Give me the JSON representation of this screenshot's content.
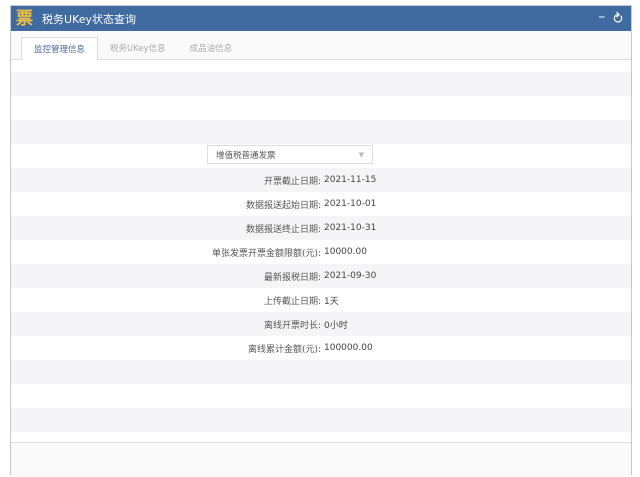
{
  "window": {
    "title": "税务UKey状态查询",
    "logo": "票",
    "minimize": "–",
    "back": "↺"
  },
  "tabs": [
    {
      "label": "监控管理信息",
      "active": true
    },
    {
      "label": "税务UKey信息"
    },
    {
      "label": "成品油信息"
    }
  ],
  "invoice_type": {
    "selected": "增值税普通发票"
  },
  "fields": [
    {
      "label": "开票截止日期:",
      "value": "2021-11-15"
    },
    {
      "label": "数据报送起始日期:",
      "value": "2021-10-01"
    },
    {
      "label": "数据报送终止日期:",
      "value": "2021-10-31"
    },
    {
      "label": "单张发票开票金额限额(元):",
      "value": "10000.00"
    },
    {
      "label": "最新报税日期:",
      "value": "2021-09-30"
    },
    {
      "label": "上传截止日期:",
      "value": "1天"
    },
    {
      "label": "离线开票时长:",
      "value": "0小时"
    },
    {
      "label": "离线累计金额(元):",
      "value": "100000.00"
    }
  ]
}
